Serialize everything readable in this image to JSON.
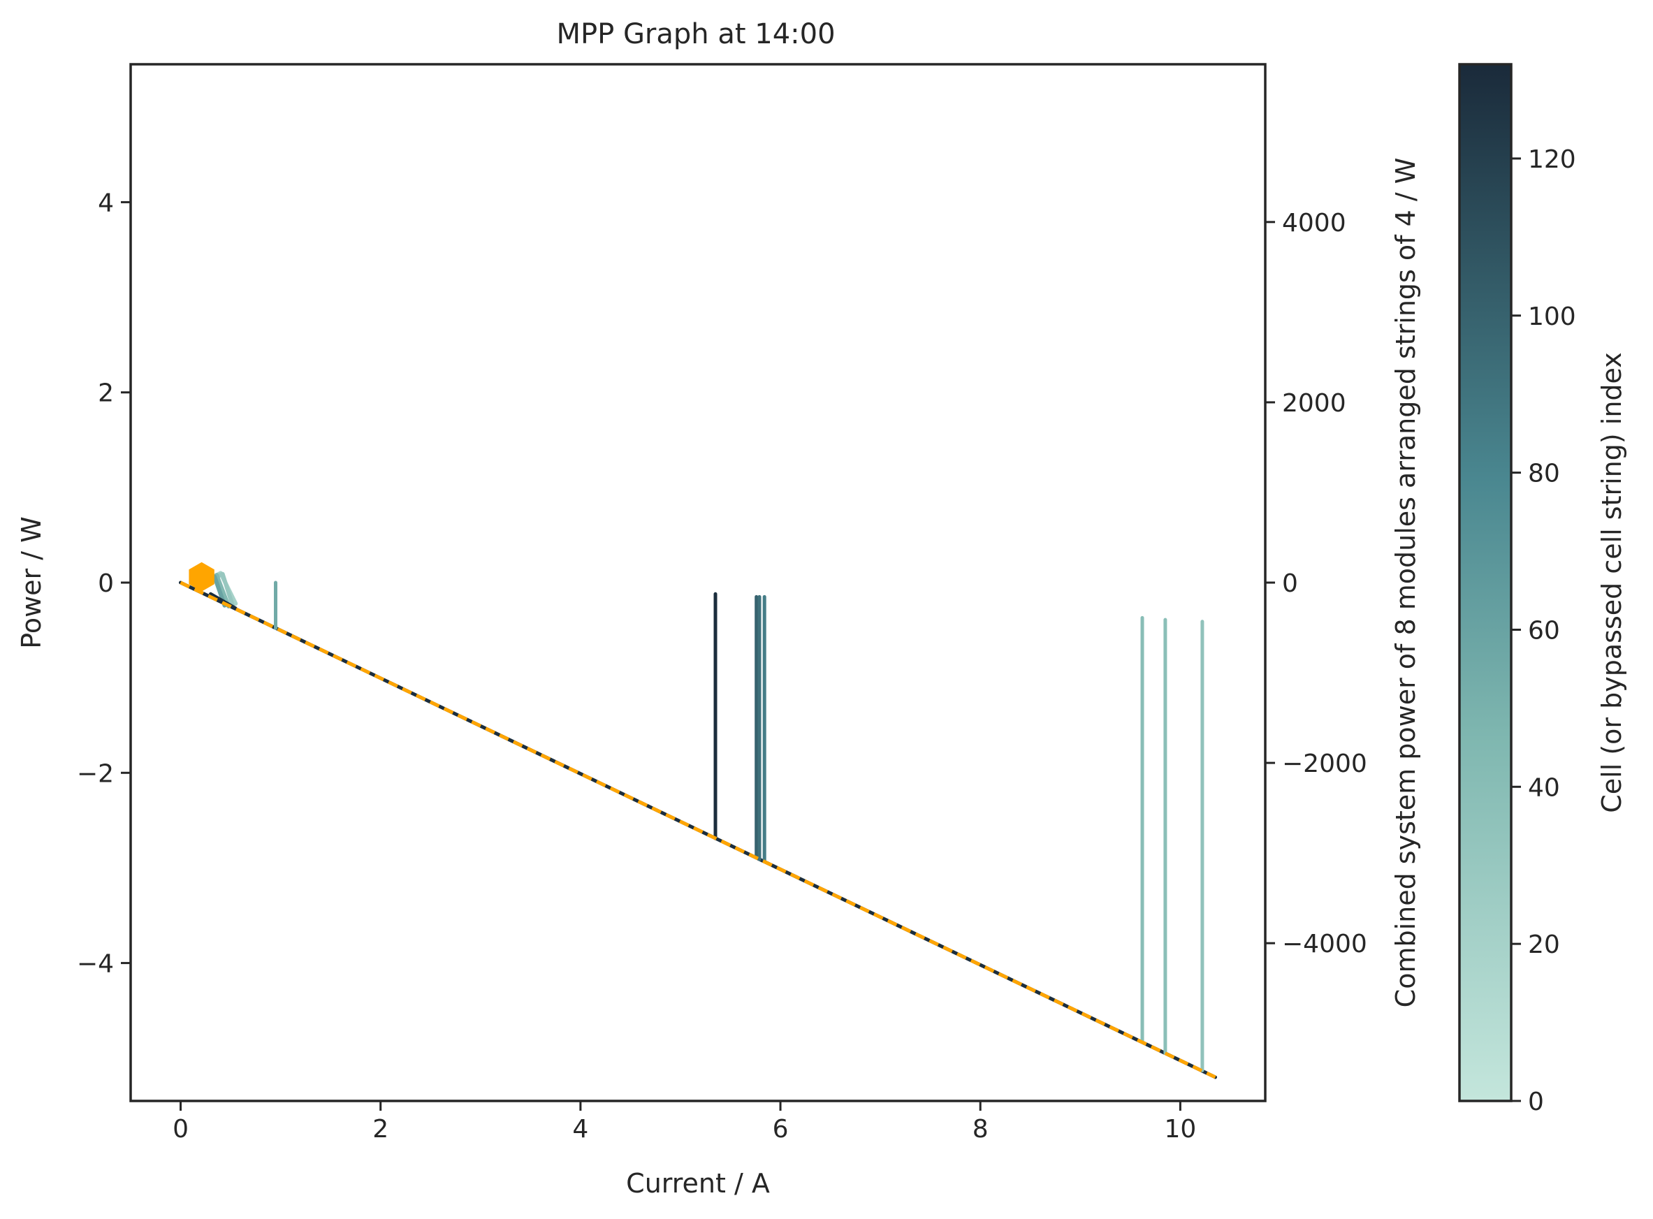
{
  "chart_data": {
    "type": "line",
    "title": "MPP Graph at 14:00",
    "xlabel": "Current / A",
    "ylabel": "Power / W",
    "y2label": "Combined system power of 8 modules arranged strings of 4 / W",
    "colorbar_label": "Cell (or bypassed cell string) index",
    "xlim": [
      -0.5,
      10.85
    ],
    "ylim": [
      -5.45,
      5.45
    ],
    "y2lim": [
      -5750,
      5750
    ],
    "x_ticks": [
      0,
      2,
      4,
      6,
      8,
      10
    ],
    "y_ticks": [
      -4,
      -2,
      0,
      2,
      4
    ],
    "y2_ticks": [
      -4000,
      -2000,
      0,
      2000,
      4000
    ],
    "colorbar_range": [
      0,
      132
    ],
    "colorbar_ticks": [
      0,
      20,
      40,
      60,
      80,
      100,
      120
    ],
    "colors": {
      "cmap_low": "#c4e6dc",
      "cmap_mid": "#5e9ba0",
      "cmap_high": "#1a2a3a",
      "system_curve": "#ffa500",
      "mpp_marker": "#ffa500",
      "frame": "#262626"
    },
    "grid": false,
    "series": [
      {
        "cell_index": 130,
        "points": [
          [
            0.0,
            0.0
          ],
          [
            10.35,
            -5.2
          ]
        ]
      },
      {
        "cell_index": 130,
        "points": [
          [
            0.3,
            -0.12
          ],
          [
            0.55,
            -0.27
          ]
        ]
      },
      {
        "cell_index": 55,
        "points": [
          [
            0.95,
            -0.48
          ],
          [
            0.95,
            0.0
          ]
        ]
      },
      {
        "cell_index": 130,
        "points": [
          [
            5.35,
            -2.69
          ],
          [
            5.35,
            -0.12
          ]
        ]
      },
      {
        "cell_index": 100,
        "points": [
          [
            5.76,
            -2.89
          ],
          [
            5.76,
            -0.15
          ]
        ]
      },
      {
        "cell_index": 92,
        "points": [
          [
            5.79,
            -2.91
          ],
          [
            5.79,
            -0.15
          ]
        ]
      },
      {
        "cell_index": 85,
        "points": [
          [
            5.84,
            -2.93
          ],
          [
            5.84,
            -0.15
          ]
        ]
      },
      {
        "cell_index": 40,
        "points": [
          [
            9.62,
            -4.83
          ],
          [
            9.62,
            -0.37
          ]
        ]
      },
      {
        "cell_index": 38,
        "points": [
          [
            9.85,
            -4.95
          ],
          [
            9.85,
            -0.39
          ]
        ]
      },
      {
        "cell_index": 35,
        "points": [
          [
            10.22,
            -5.13
          ],
          [
            10.22,
            -0.41
          ]
        ]
      }
    ],
    "teal_cluster": [
      {
        "cell_index": 20,
        "points": [
          [
            0.22,
            0.0
          ],
          [
            0.4,
            0.1
          ],
          [
            0.55,
            -0.22
          ]
        ]
      },
      {
        "cell_index": 30,
        "points": [
          [
            0.24,
            0.0
          ],
          [
            0.42,
            0.09
          ],
          [
            0.52,
            -0.24
          ]
        ]
      },
      {
        "cell_index": 45,
        "points": [
          [
            0.26,
            0.0
          ],
          [
            0.36,
            0.08
          ],
          [
            0.48,
            -0.25
          ]
        ]
      },
      {
        "cell_index": 60,
        "points": [
          [
            0.28,
            -0.02
          ],
          [
            0.34,
            0.06
          ],
          [
            0.44,
            -0.24
          ]
        ]
      }
    ],
    "system_curve": {
      "points": [
        [
          0.0,
          0.0
        ],
        [
          10.35,
          -5.2
        ]
      ],
      "style": "dashed"
    },
    "mpp_marker": {
      "x": 0.21,
      "y": 0.06,
      "shape": "hexagon"
    }
  }
}
